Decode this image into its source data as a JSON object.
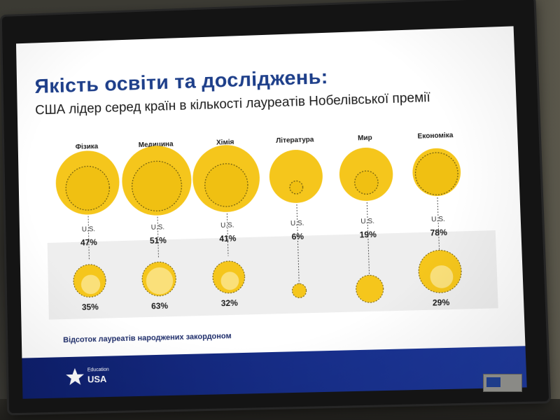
{
  "slide": {
    "headline": "Якість освіти та досліджень:",
    "subtitle": "США лідер серед країн в кількості лауреатів Нобелівської премії",
    "us_marker": "U.S.",
    "footnote": "Відсоток лауреатів народжених закордоном",
    "logo_line1": "Education",
    "logo_line2": "USA",
    "colors": {
      "title": "#1e3f8a",
      "bubble_fill": "#f5c61c",
      "bubble_dark": "#e8b400",
      "inner_fill": "#fae07a",
      "bubble_outline": "#6b5a10",
      "panel": "#eeeeee",
      "footer": "#1e3aa0"
    }
  },
  "chart_data": {
    "type": "bubble",
    "categories": [
      "Фізика",
      "Медицина",
      "Хімія",
      "Література",
      "Мир",
      "Економіка"
    ],
    "series": [
      {
        "name": "U.S.",
        "values": [
          47,
          51,
          41,
          6,
          19,
          78
        ]
      },
      {
        "name": "Відсоток лауреатів народжених закордоном",
        "values": [
          35,
          63,
          32,
          null,
          null,
          29
        ]
      }
    ],
    "labels_top": [
      "47%",
      "51%",
      "41%",
      "6%",
      "19%",
      "78%"
    ],
    "labels_bottom": [
      "35%",
      "63%",
      "32%",
      "",
      "",
      "29%"
    ]
  }
}
